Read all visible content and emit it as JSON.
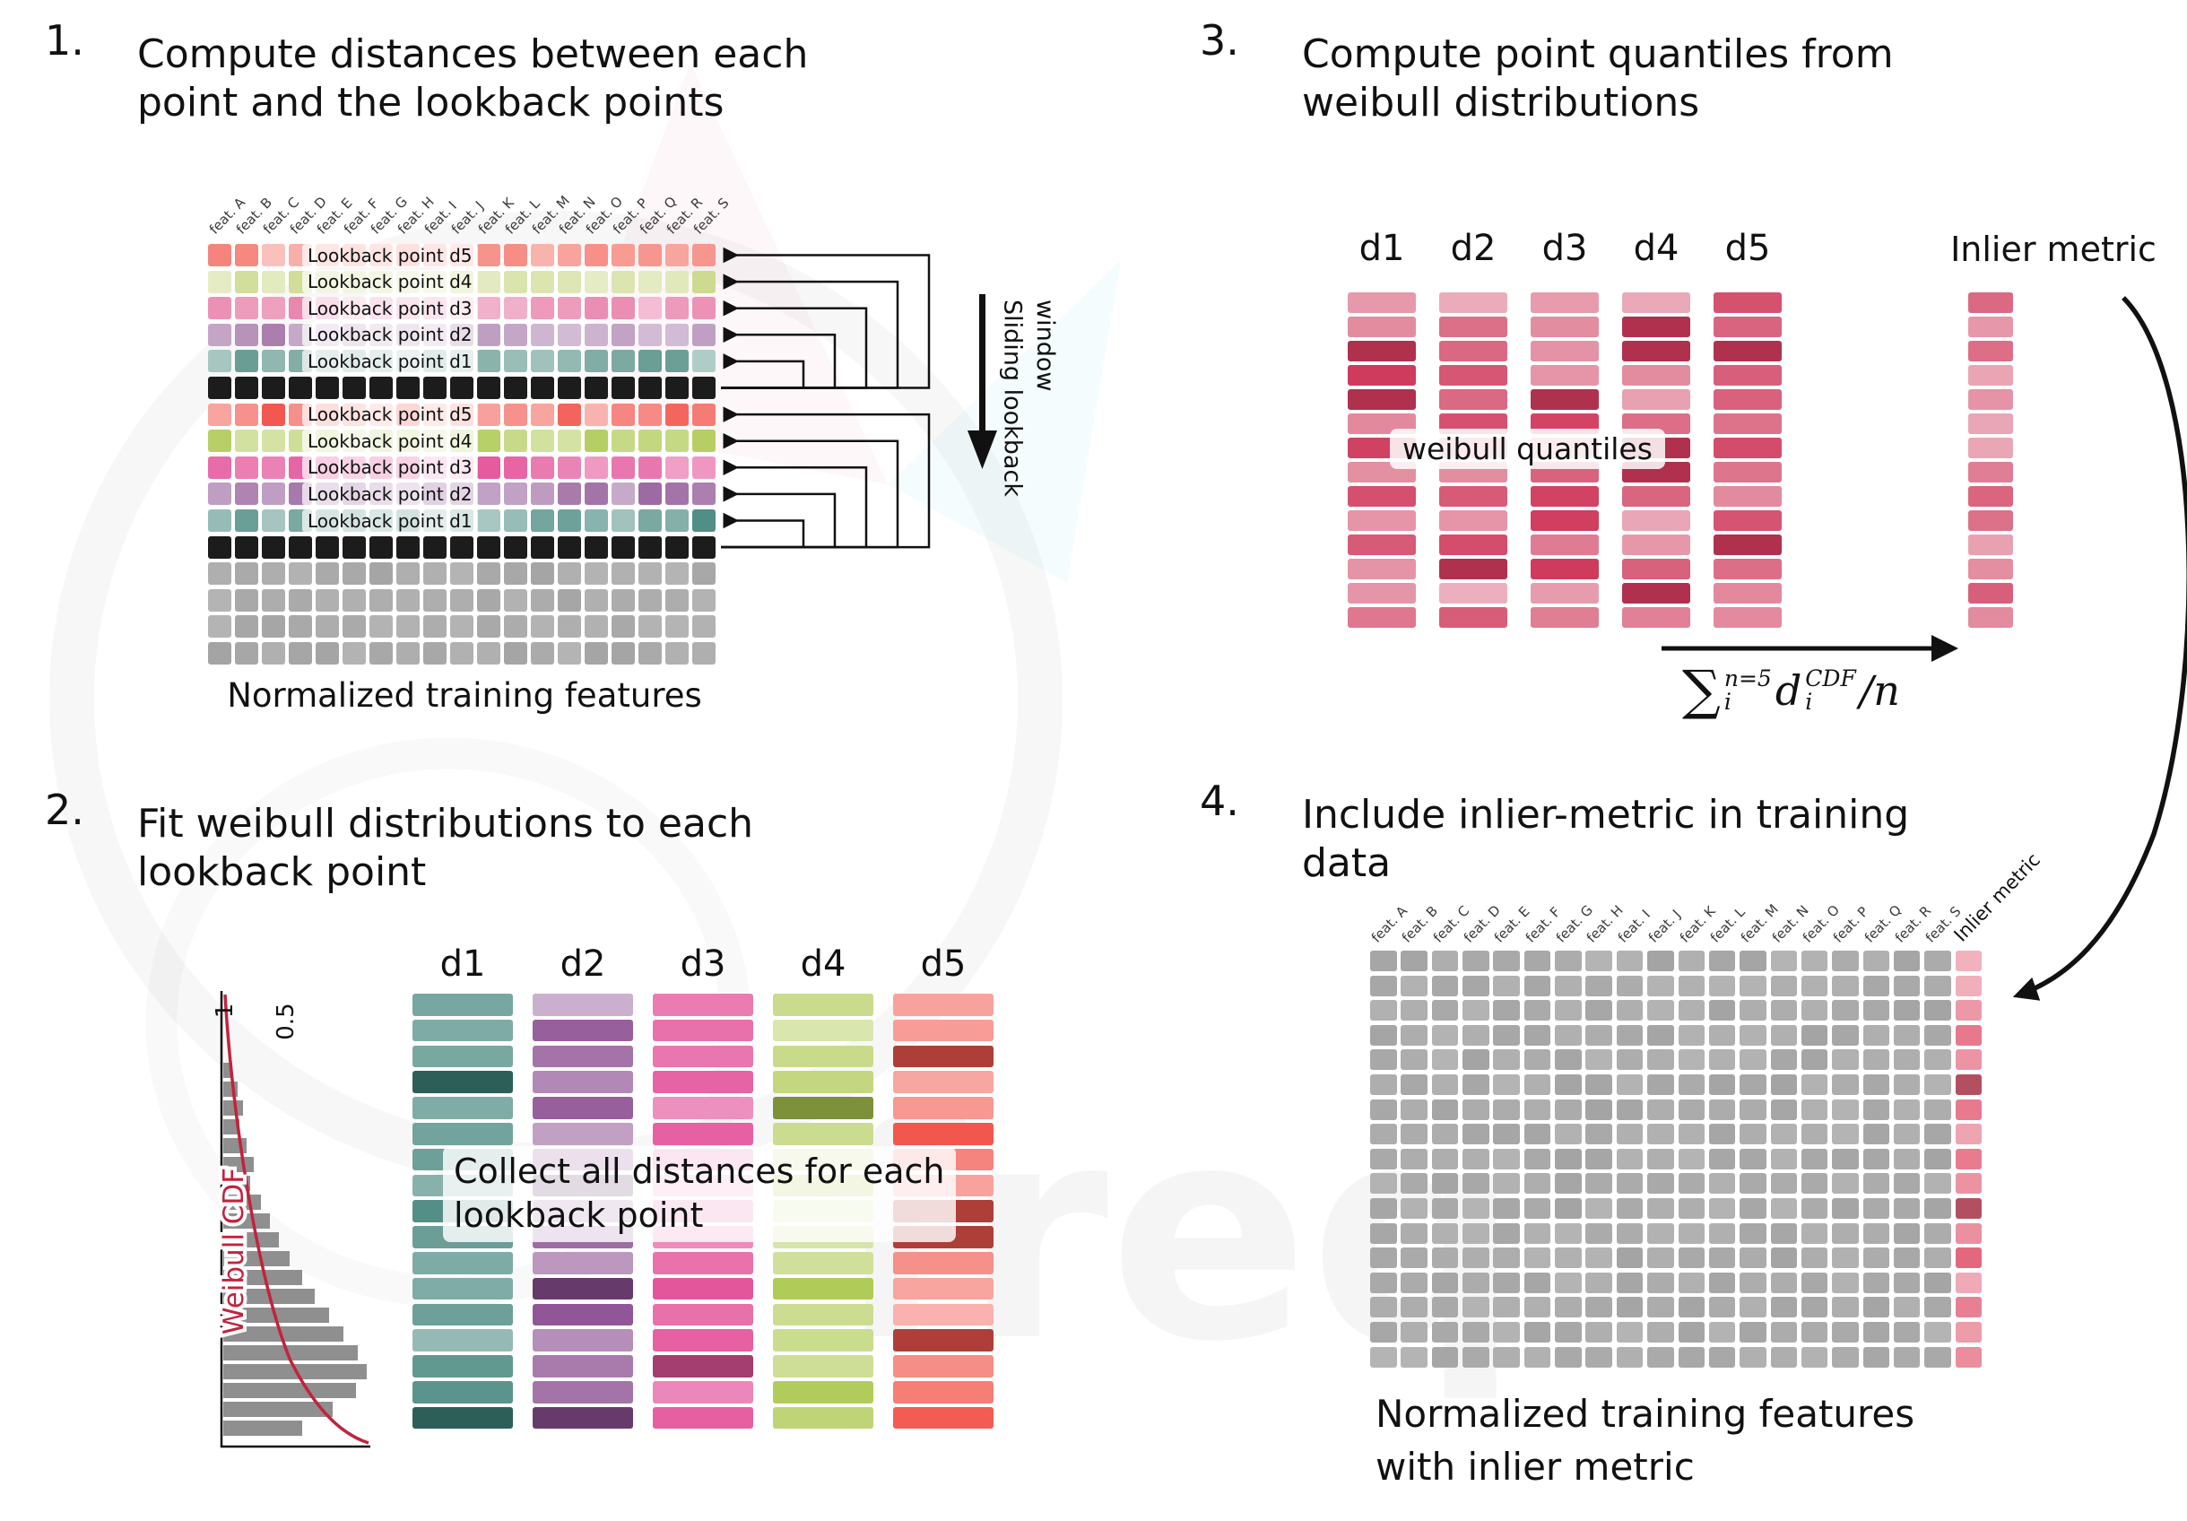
{
  "panels": {
    "p1": {
      "number": "1.",
      "title": [
        "Compute distances between each",
        "point and the lookback points"
      ],
      "caption": "Normalized training features",
      "sliding_label": "Sliding lookback window",
      "lookback_labels": [
        "Lookback point d5",
        "Lookback point d4",
        "Lookback point d3",
        "Lookback point d2",
        "Lookback point d1"
      ]
    },
    "p2": {
      "number": "2.",
      "title": [
        "Fit weibull distributions to each",
        "lookback point"
      ],
      "overlay": [
        "Collect all distances for each",
        "lookback point"
      ],
      "col_labels": [
        "d1",
        "d2",
        "d3",
        "d4",
        "d5"
      ]
    },
    "p3": {
      "number": "3.",
      "title": [
        "Compute point quantiles from",
        "weibull distributions"
      ],
      "col_labels": [
        "d1",
        "d2",
        "d3",
        "d4",
        "d5"
      ],
      "overlay": "weibull quantiles",
      "inlier_label": "Inlier metric",
      "formula": {
        "sum": "∑",
        "sum_sup": "n=5",
        "sum_sub": "i",
        "var": "d",
        "var_sup": "CDF",
        "var_sub": "i",
        "tail": "/n"
      }
    },
    "p4": {
      "number": "4.",
      "title": [
        "Include inlier-metric in training",
        "data"
      ],
      "caption": [
        "Normalized training features",
        "with inlier metric"
      ],
      "inlier_label": "Inlier metric"
    }
  },
  "features": [
    "feat. A",
    "feat. B",
    "feat. C",
    "feat. D",
    "feat. E",
    "feat. F",
    "feat. G",
    "feat. H",
    "feat. I",
    "feat. J",
    "feat. K",
    "feat. L",
    "feat. M",
    "feat. N",
    "feat. O",
    "feat. P",
    "feat. Q",
    "feat. R",
    "feat. S"
  ],
  "colors": {
    "red_light": "#f5847b",
    "green_light": "#ccd98d",
    "pink_light": "#ea86ae",
    "purple_light": "#a87cab",
    "teal_light": "#6a9e95",
    "red": "#f2574e",
    "green": "#aec952",
    "pink": "#e4559b",
    "purple": "#8e5294",
    "teal": "#40837a",
    "black": "#1c1c1c",
    "gray": "#a4a4a4",
    "crimson": "#cf3a5c",
    "inlier_pink": "#e4677d",
    "cdf_red": "#c2233c"
  },
  "grid1_rows": [
    {
      "c": "red_light",
      "label": 0,
      "v": 0.5
    },
    {
      "c": "green_light",
      "label": 1,
      "v": 0.5
    },
    {
      "c": "pink_light",
      "label": 2,
      "v": 0.5
    },
    {
      "c": "purple_light",
      "label": 3,
      "v": 0.5
    },
    {
      "c": "teal_light",
      "label": 4,
      "v": 0.5
    },
    {
      "c": "black",
      "v": 0
    },
    {
      "c": "red",
      "label": 0,
      "v": 0.55
    },
    {
      "c": "green",
      "label": 1,
      "v": 0.55
    },
    {
      "c": "pink",
      "label": 2,
      "v": 0.55
    },
    {
      "c": "purple",
      "label": 3,
      "v": 0.55
    },
    {
      "c": "teal",
      "label": 4,
      "v": 0.55
    },
    {
      "c": "black",
      "v": 0
    },
    {
      "c": "gray",
      "v": 0.18
    },
    {
      "c": "gray",
      "v": 0.18
    },
    {
      "c": "gray",
      "v": 0.18
    },
    {
      "c": "gray",
      "v": 0.18
    }
  ],
  "p2_columns": [
    "teal",
    "purple",
    "pink",
    "green",
    "red"
  ],
  "weibull": {
    "label": "Weibull CDF",
    "ticks": [
      "1",
      "0.5"
    ],
    "hist_lengths": [
      10,
      16,
      22,
      18,
      26,
      34,
      30,
      42,
      52,
      62,
      74,
      88,
      102,
      118,
      134,
      150,
      160,
      148,
      122,
      88
    ]
  },
  "watermark": {
    "text": "freq"
  }
}
